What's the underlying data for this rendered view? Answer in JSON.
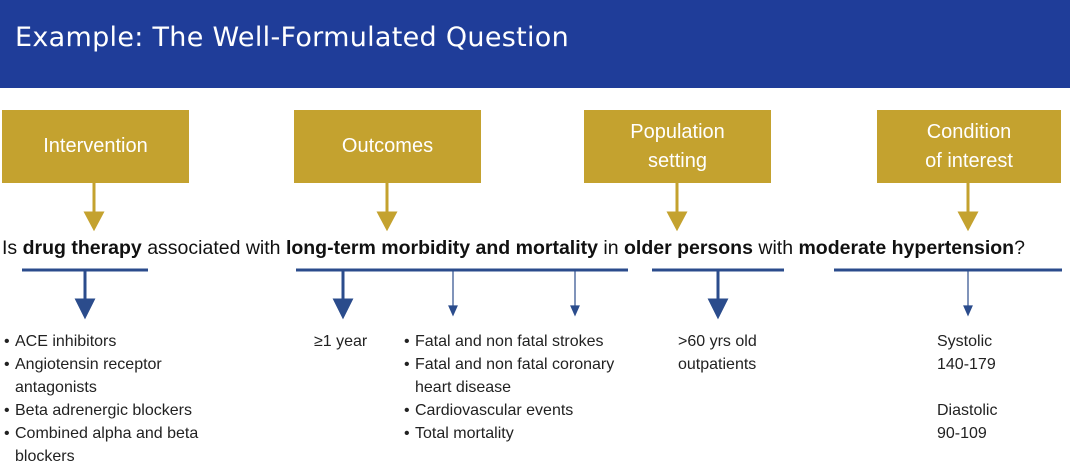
{
  "header": {
    "title": "Example: The Well-Formulated Question"
  },
  "boxes": [
    {
      "label": "Intervention"
    },
    {
      "label": "Outcomes"
    },
    {
      "label": "Population\nsetting"
    },
    {
      "label": "Condition\nof interest"
    }
  ],
  "question": {
    "p1": "Is ",
    "b1": "drug therapy",
    "p2": " associated with ",
    "b2": "long-term morbidity and mortality",
    "p3": " in ",
    "b3": "older persons",
    "p4": " with ",
    "b4": "moderate hypertension",
    "p5": "?"
  },
  "intervention_items": [
    "ACE inhibitors",
    "Angiotensin receptor antagonists",
    "Beta adrenergic blockers",
    "Combined alpha and beta blockers"
  ],
  "outcome_duration": "≥1 year",
  "outcome_items": [
    "Fatal and non fatal strokes",
    "Fatal and non fatal coronary heart disease",
    "Cardiovascular events",
    "Total mortality"
  ],
  "population_text": ">60 yrs old\noutpatients",
  "condition": {
    "systolic_label": "Systolic",
    "systolic_range": "140-179",
    "diastolic_label": "Diastolic",
    "diastolic_range": "90-109"
  },
  "colors": {
    "header": "#1f3d99",
    "box": "#c4a22f",
    "arrow_gold": "#c4a22f",
    "arrow_blue": "#2b4c8c"
  }
}
